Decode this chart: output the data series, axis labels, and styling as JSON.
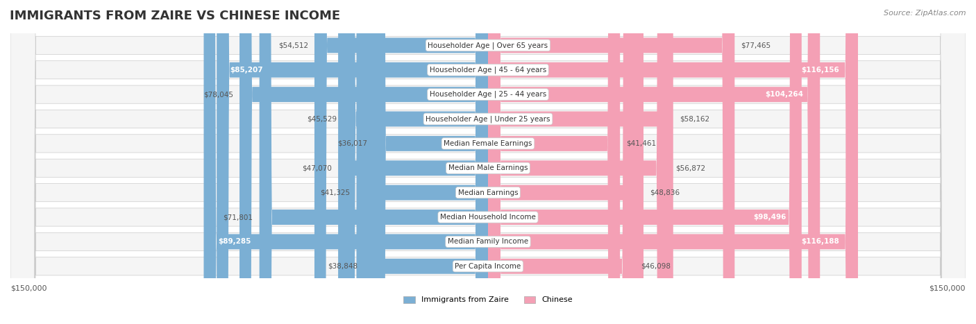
{
  "title": "IMMIGRANTS FROM ZAIRE VS CHINESE INCOME",
  "source": "Source: ZipAtlas.com",
  "categories": [
    "Per Capita Income",
    "Median Family Income",
    "Median Household Income",
    "Median Earnings",
    "Median Male Earnings",
    "Median Female Earnings",
    "Householder Age | Under 25 years",
    "Householder Age | 25 - 44 years",
    "Householder Age | 45 - 64 years",
    "Householder Age | Over 65 years"
  ],
  "zaire_values": [
    38848,
    89285,
    71801,
    41325,
    47070,
    36017,
    45529,
    78045,
    85207,
    54512
  ],
  "chinese_values": [
    46098,
    116188,
    98496,
    48836,
    56872,
    41461,
    58162,
    104264,
    116156,
    77465
  ],
  "zaire_labels": [
    "$38,848",
    "$89,285",
    "$71,801",
    "$41,325",
    "$47,070",
    "$36,017",
    "$45,529",
    "$78,045",
    "$85,207",
    "$54,512"
  ],
  "chinese_labels": [
    "$46,098",
    "$116,188",
    "$98,496",
    "$48,836",
    "$56,872",
    "$41,461",
    "$58,162",
    "$104,264",
    "$116,156",
    "$77,465"
  ],
  "zaire_color": "#7bafd4",
  "zaire_color_dark": "#5b8db8",
  "chinese_color": "#f4a0b5",
  "chinese_color_dark": "#e8728f",
  "max_value": 150000,
  "bg_color": "#ffffff",
  "row_bg": "#f0f0f0",
  "label_fontsize": 9,
  "title_fontsize": 13
}
